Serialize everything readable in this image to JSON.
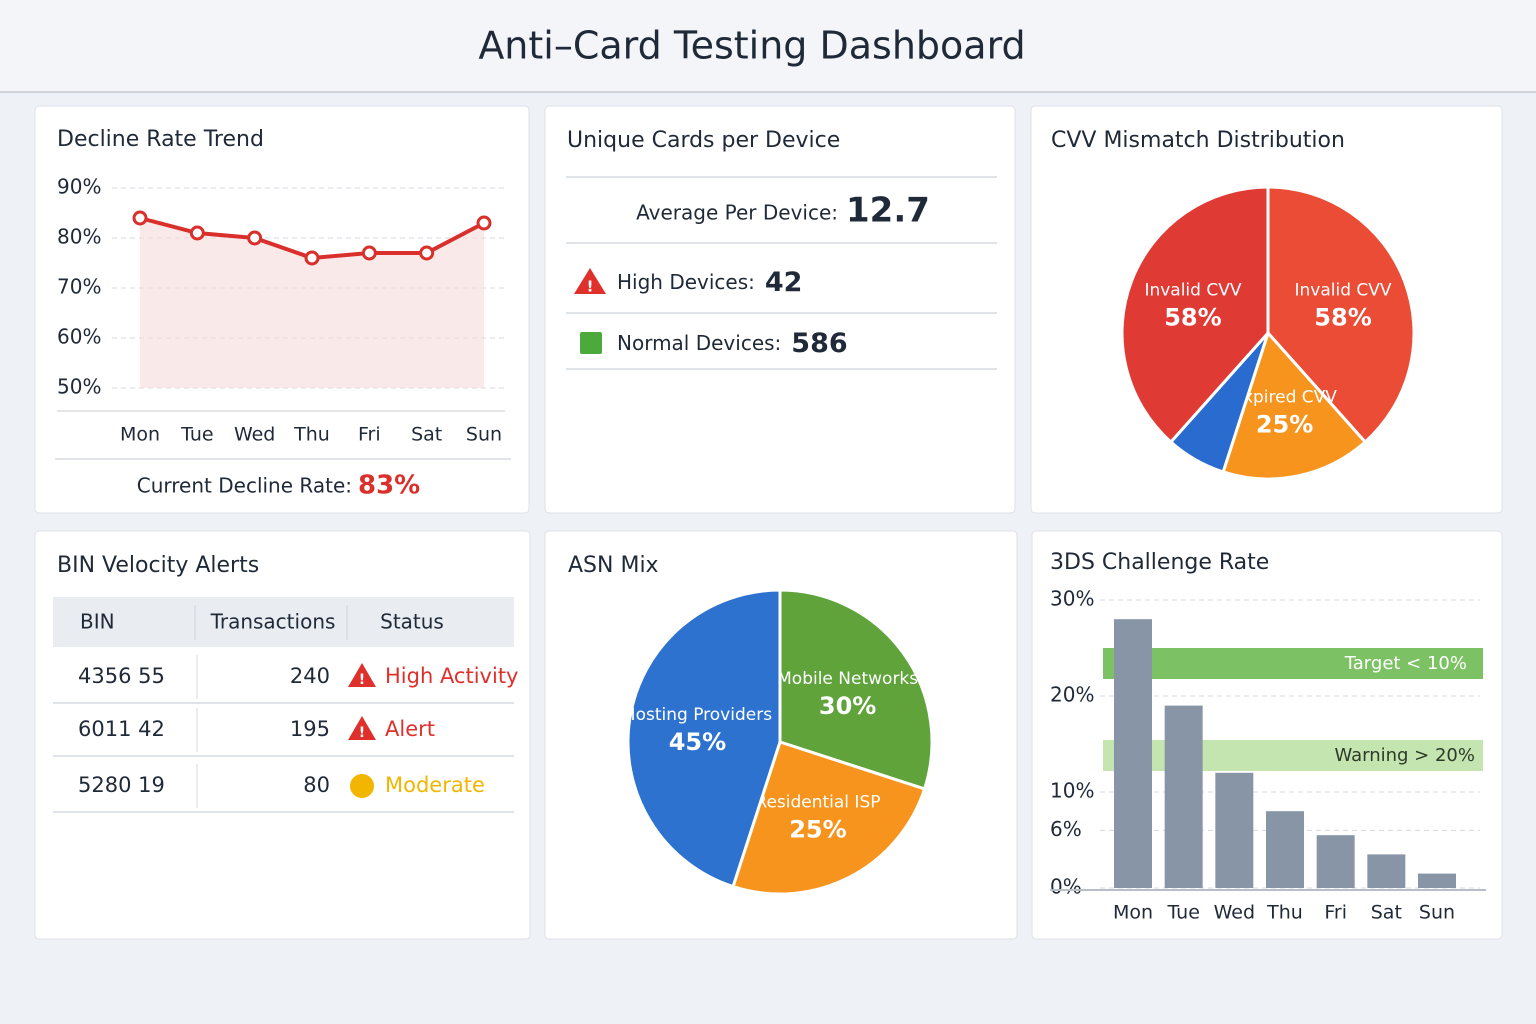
{
  "header": {
    "title": "Anti–Card Testing Dashboard"
  },
  "chart_data": [
    {
      "type": "line",
      "title": "Decline Rate Trend",
      "categories": [
        "Mon",
        "Tue",
        "Wed",
        "Thu",
        "Fri",
        "Sat",
        "Sun"
      ],
      "values": [
        84,
        81,
        80,
        76,
        77,
        77,
        83
      ],
      "color": "#d9302c",
      "ylim": [
        50,
        90
      ],
      "yticks": [
        {
          "value": 90,
          "label": "90%"
        },
        {
          "value": 80,
          "label": "80%"
        },
        {
          "value": 70,
          "label": "70%"
        },
        {
          "value": 60,
          "label": "60%"
        },
        {
          "value": 50,
          "label": "50%"
        }
      ],
      "grid": true,
      "current_label": "Current Decline Rate:",
      "current_value": "83%"
    },
    {
      "type": "pie",
      "title": "CVV Mismatch Distribution",
      "categories": [
        "Invalid CVV",
        "Expired CVV",
        null,
        "Invalid CVV"
      ],
      "values": [
        58,
        25,
        10,
        58
      ],
      "value_labels": [
        "58%",
        "25%",
        null,
        "58%"
      ],
      "colors": [
        "#ea4c35",
        "#f7941d",
        "#2a6bd0",
        "#e03a35"
      ]
    },
    {
      "type": "pie",
      "title": "ASN Mix",
      "categories": [
        "Mobile Networks",
        "Residential ISP",
        "Hosting Providers"
      ],
      "values": [
        30,
        25,
        45
      ],
      "value_labels": [
        "30%",
        "25%",
        "45%"
      ],
      "colors": [
        "#5fa33a",
        "#f7941d",
        "#2e72cf"
      ]
    },
    {
      "type": "bar",
      "title": "3DS Challenge Rate",
      "categories": [
        "Mon",
        "Tue",
        "Wed",
        "Thu",
        "Fri",
        "Sat",
        "Sun"
      ],
      "values": [
        28,
        19,
        12,
        8,
        5.5,
        3.5,
        1.5
      ],
      "color": "#8795a6",
      "ylim": [
        0,
        30
      ],
      "yticks": [
        {
          "value": 30,
          "label": "30%"
        },
        {
          "value": 20,
          "label": "20%"
        },
        {
          "value": 10,
          "label": "10%"
        },
        {
          "value": 6,
          "label": "6%"
        },
        {
          "value": 0,
          "label": "0%"
        }
      ],
      "grid": true,
      "annotations": [
        "Target < 10%",
        "Warning > 20%"
      ]
    }
  ],
  "device_panel": {
    "title": "Unique Cards per Device",
    "average_label": "Average Per Device:",
    "average": 12.7,
    "high_label": "High Devices:",
    "high": 42,
    "normal_label": "Normal Devices:",
    "normal": 586
  },
  "bin_table": {
    "title": "BIN Velocity Alerts",
    "columns": [
      "BIN",
      "Transactions",
      "Status"
    ],
    "rows": [
      [
        "4356 55",
        240,
        "High Activity"
      ],
      [
        "6011 42",
        195,
        "Alert"
      ],
      [
        "5280 19",
        80,
        "Moderate"
      ]
    ],
    "status_colors": [
      "#e0302c",
      "#e0302c",
      "#f2b600"
    ]
  }
}
